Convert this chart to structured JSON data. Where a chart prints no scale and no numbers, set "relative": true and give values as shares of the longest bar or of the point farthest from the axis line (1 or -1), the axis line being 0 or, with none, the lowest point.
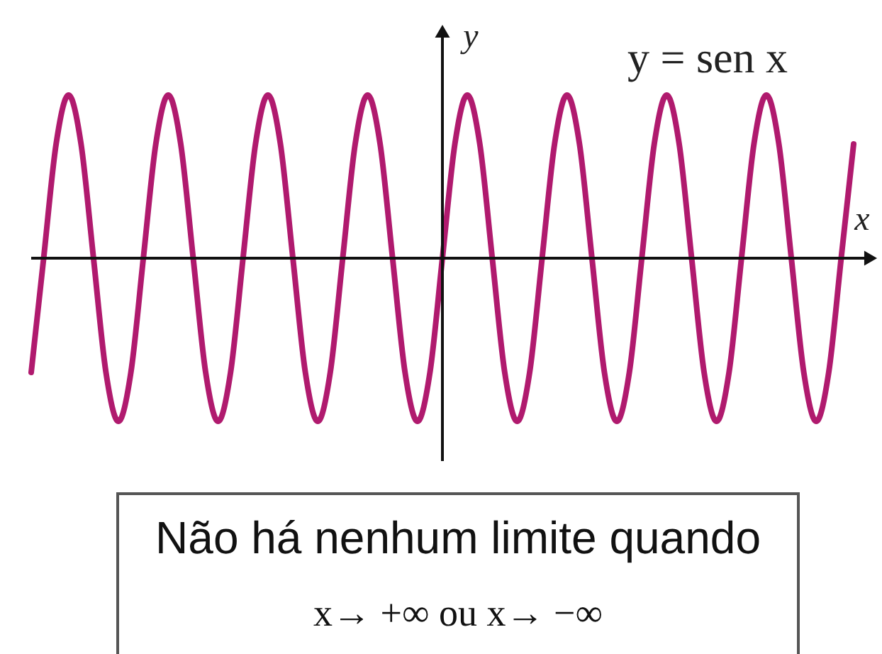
{
  "chart_data": {
    "type": "line",
    "relative": true,
    "xlabel": "x",
    "ylabel": "y",
    "categories": [
      null,
      null,
      null,
      null,
      null,
      null,
      null,
      null,
      null,
      null,
      null,
      null,
      null,
      null,
      null,
      null,
      null,
      null,
      null,
      null,
      null,
      null,
      null,
      null,
      null,
      null,
      null,
      null,
      null,
      null,
      null,
      null,
      null,
      null,
      null,
      null,
      null,
      null,
      null,
      null,
      null,
      null,
      null,
      null,
      null,
      null,
      null,
      null,
      null,
      null,
      null,
      null,
      null,
      null,
      null,
      null,
      null,
      null,
      null,
      null,
      null,
      null,
      null,
      null,
      null,
      null,
      null
    ],
    "series": [
      {
        "name": "y = sen x",
        "color": "#b01a6e",
        "values": [
          -0.7,
          0,
          0.7,
          1,
          0.7,
          0,
          -0.7,
          -1,
          -0.7,
          0,
          0.7,
          1,
          0.7,
          0,
          -0.7,
          -1,
          -0.7,
          0,
          0.7,
          1,
          0.7,
          0,
          -0.7,
          -1,
          -0.7,
          0,
          0.7,
          1,
          0.7,
          0,
          -0.7,
          -1,
          -0.7,
          0,
          0.7,
          1,
          0.7,
          0,
          -0.7,
          -1,
          -0.7,
          0,
          0.7,
          1,
          0.7,
          0,
          -0.7,
          -1,
          -0.7,
          0,
          0.7,
          1,
          0.7,
          0,
          -0.7,
          -1,
          -0.7,
          0,
          0.7,
          1,
          0.7,
          0,
          -0.7,
          -1,
          -0.7,
          0,
          0.7
        ]
      }
    ],
    "annotations": [
      "Não há nenhum limite quando",
      "x→ +∞ ou x→ −∞"
    ]
  }
}
